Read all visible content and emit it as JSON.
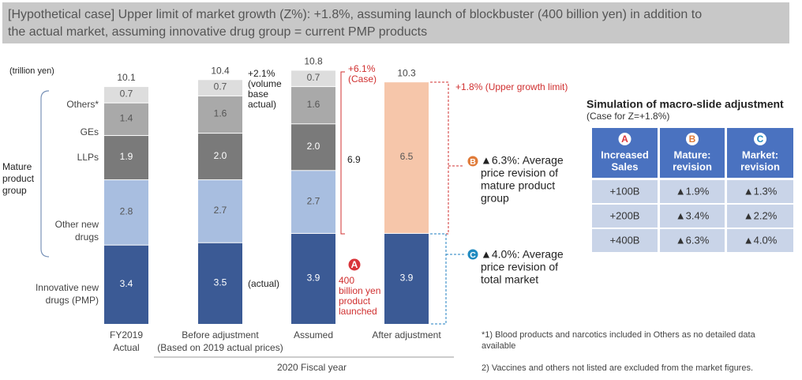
{
  "chart_data": {
    "type": "bar",
    "stacked": true,
    "title": [
      "[Hypothetical case] Upper limit of market growth (Z%): +1.8%, assuming launch of blockbuster (400 billion yen) in addition to",
      "the actual market, assuming innovative drug group = current PMP products"
    ],
    "unit": "(trillion yen)",
    "categories": [
      [
        "FY2019",
        "Actual"
      ],
      [
        "Before adjustment",
        "(Based on 2019 actual prices)"
      ],
      [
        "Assumed"
      ],
      [
        "After adjustment"
      ]
    ],
    "group_label": "2020 Fiscal year",
    "series": [
      {
        "name": [
          "Innovative new",
          "drugs (PMP)"
        ],
        "color": "#3b5a95",
        "label_color": "#ffffff",
        "values": [
          3.4,
          3.5,
          3.9,
          3.9
        ]
      },
      {
        "name": [
          "Other new",
          "drugs"
        ],
        "color": "#a8bee0",
        "label_color": "#555555",
        "values": [
          2.8,
          2.7,
          2.7,
          null
        ]
      },
      {
        "name": [
          "LLPs"
        ],
        "color": "#7a7a7a",
        "label_color": "#ffffff",
        "values": [
          1.9,
          2,
          2,
          null
        ],
        "value_labels": [
          "1.9",
          "2.0",
          "2.0",
          null
        ]
      },
      {
        "name": [
          "GEs"
        ],
        "color": "#a9a9a9",
        "label_color": "#555555",
        "values": [
          1.4,
          1.6,
          1.6,
          null
        ]
      },
      {
        "name": [
          "Others*"
        ],
        "color": "#dddddd",
        "label_color": "#555555",
        "values": [
          0.7,
          0.7,
          0.7,
          null
        ]
      },
      {
        "color": "#f6c6aa",
        "label_color": "#555555",
        "values": [
          null,
          null,
          null,
          6.5
        ]
      }
    ],
    "totals": [
      10.1,
      10.4,
      10.8,
      10.3
    ],
    "group_brace": [
      "Mature",
      "product",
      "group"
    ],
    "annotations": {
      "before": [
        "+2.1%",
        "(volume",
        "base",
        "actual)"
      ],
      "actual": "(actual)",
      "case": [
        "+6.1%",
        "(Case)"
      ],
      "mature_total": 6.9,
      "launch_letter": "A",
      "launch": [
        "400",
        "billion yen",
        "product",
        "launched"
      ],
      "upper": "+1.8% (Upper growth limit)",
      "b_letter": "B",
      "b": [
        "▲6.3%: Average",
        "price revision of",
        "mature product",
        "group"
      ],
      "c_letter": "C",
      "c": [
        "▲4.0%: Average",
        "price revision of",
        "total market"
      ]
    }
  },
  "table": {
    "title": "Simulation of macro-slide adjustment",
    "subtitle": "(Case for Z=+1.8%)",
    "letters": [
      "A",
      "B",
      "C"
    ],
    "header": [
      [
        "Increased",
        "Sales"
      ],
      [
        "Mature:",
        "revision"
      ],
      [
        "Market:",
        "revision"
      ]
    ],
    "rows": [
      [
        "+100B",
        "▲1.9%",
        "▲1.3%"
      ],
      [
        "+200B",
        "▲3.4%",
        "▲2.2%"
      ],
      [
        "+400B",
        "▲6.3%",
        "▲4.0%"
      ]
    ]
  },
  "footnotes": [
    "*1) Blood products and narcotics included in Others as no detailed data",
    "available",
    "2) Vaccines and others not listed are excluded from the market figures."
  ]
}
